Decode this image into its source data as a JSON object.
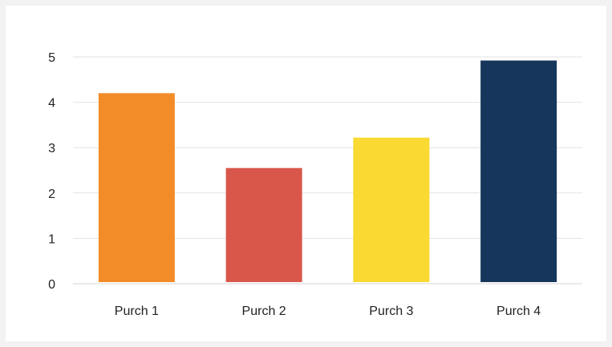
{
  "chart_data": {
    "type": "bar",
    "title": "",
    "xlabel": "",
    "ylabel": "",
    "categories": [
      "Purch 1",
      "Purch 2",
      "Purch 3",
      "Purch 4"
    ],
    "values": [
      4.2,
      2.55,
      3.22,
      4.92
    ],
    "colors": [
      "#f28c28",
      "#d9574a",
      "#f9d932",
      "#16365c"
    ],
    "ylim": [
      0,
      5
    ],
    "yticks": [
      0,
      1,
      2,
      3,
      4,
      5
    ],
    "grid": true,
    "legend": "none"
  }
}
